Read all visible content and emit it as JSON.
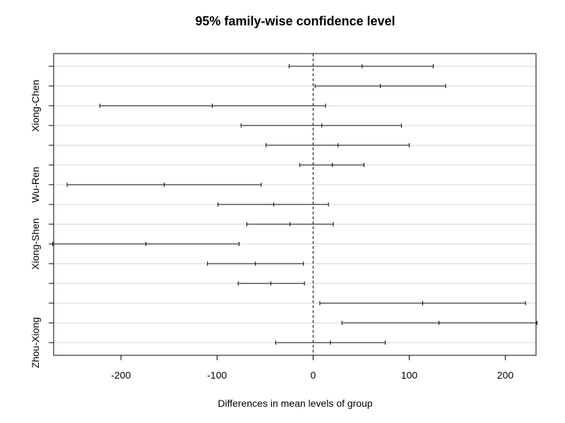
{
  "chart_data": {
    "type": "errorbar",
    "title": "95% family-wise confidence level",
    "xlabel": "Differences in mean levels of group",
    "ylabel": "",
    "xlim": [
      -270,
      232
    ],
    "xticks": [
      -200,
      -100,
      0,
      100,
      200
    ],
    "grid": "horizontal",
    "reference_line": 0,
    "ytick_labels": [
      "",
      "",
      "Xiong-Chen",
      "",
      "",
      "",
      "Wu-Ren",
      "",
      "",
      "Xiong-Shen",
      "",
      "",
      "",
      "",
      "Zhou-Xiong"
    ],
    "intervals": [
      {
        "lower": -25,
        "estimate": 51,
        "upper": 125
      },
      {
        "lower": 2,
        "estimate": 70,
        "upper": 138
      },
      {
        "lower": -222,
        "estimate": -105,
        "upper": 13
      },
      {
        "lower": -75,
        "estimate": 9,
        "upper": 92
      },
      {
        "lower": -49,
        "estimate": 26,
        "upper": 100
      },
      {
        "lower": -14,
        "estimate": 20,
        "upper": 53
      },
      {
        "lower": -256,
        "estimate": -155,
        "upper": -54
      },
      {
        "lower": -99,
        "estimate": -41,
        "upper": 16
      },
      {
        "lower": -69,
        "estimate": -24,
        "upper": 21
      },
      {
        "lower": -271,
        "estimate": -174,
        "upper": -77
      },
      {
        "lower": -110,
        "estimate": -60,
        "upper": -10
      },
      {
        "lower": -78,
        "estimate": -44,
        "upper": -9
      },
      {
        "lower": 7,
        "estimate": 114,
        "upper": 221
      },
      {
        "lower": 30,
        "estimate": 131,
        "upper": 233
      },
      {
        "lower": -39,
        "estimate": 18,
        "upper": 75
      }
    ]
  }
}
